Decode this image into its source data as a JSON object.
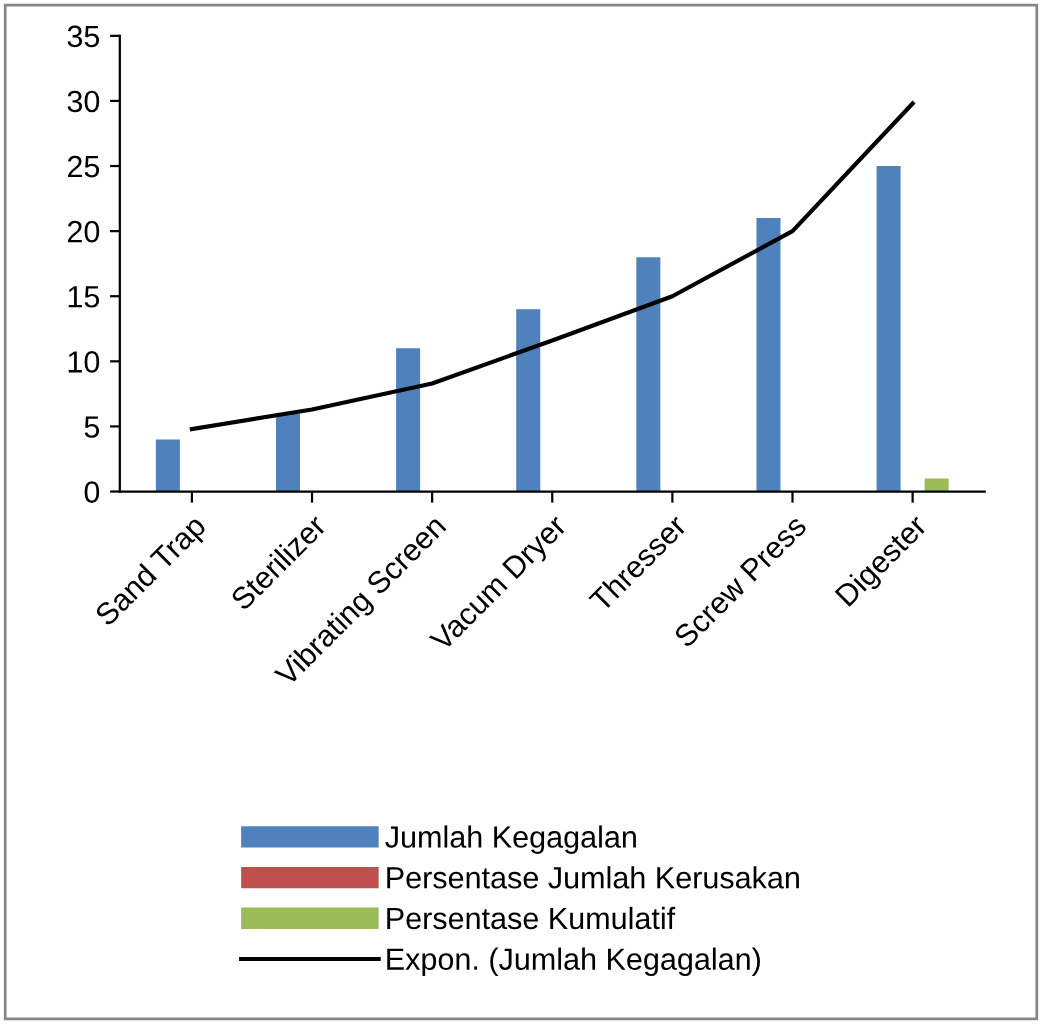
{
  "chart_data": {
    "type": "bar",
    "categories": [
      "Sand Trap",
      "Sterilizer",
      "Vibrating Screen",
      "Vacum Dryer",
      "Thresser",
      "Screw Press",
      "Digester"
    ],
    "series": [
      {
        "name": "Jumlah Kegagalan",
        "color": "#4f81bd",
        "values": [
          4,
          6,
          11,
          14,
          18,
          21,
          25
        ]
      },
      {
        "name": "Persentase Jumlah Kerusakan",
        "color": "#c0504d",
        "values": [
          null,
          null,
          null,
          null,
          null,
          null,
          null
        ]
      },
      {
        "name": "Persentase Kumulatif",
        "color": "#9bbb59",
        "values": [
          null,
          null,
          null,
          null,
          null,
          null,
          1
        ]
      },
      {
        "name": "Expon. (Jumlah Kegagalan)",
        "type": "line",
        "color": "#000000",
        "values": [
          4.8,
          6.3,
          8.3,
          11.6,
          15,
          20,
          29.8
        ]
      }
    ],
    "ylim": [
      0,
      35
    ],
    "yticks": [
      0,
      5,
      10,
      15,
      20,
      25,
      30,
      35
    ],
    "grid": false,
    "legend": "bottom",
    "marker": "none",
    "line_style": "solid"
  }
}
